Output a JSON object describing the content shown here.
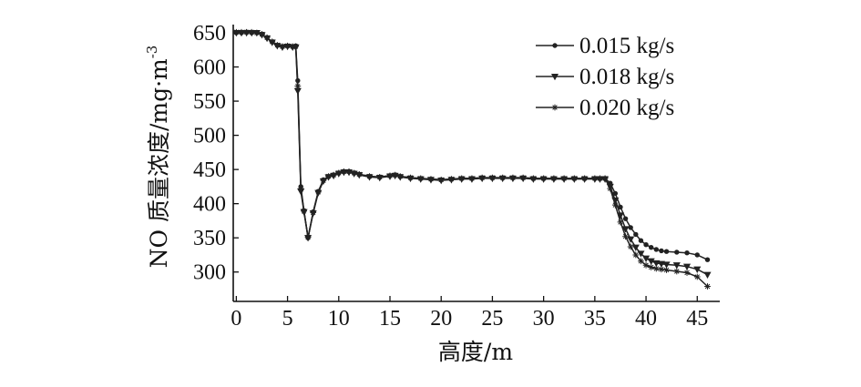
{
  "chart_data": {
    "type": "line",
    "xlabel": "高度/m",
    "ylabel": "NO 质量浓度/mg·m",
    "ylabel_sup": "-3",
    "xlim": [
      -0.3,
      47.2
    ],
    "ylim": [
      257,
      662
    ],
    "xticks": [
      0,
      5,
      10,
      15,
      20,
      25,
      30,
      35,
      40,
      45
    ],
    "yticks": [
      300,
      350,
      400,
      450,
      500,
      550,
      600,
      650
    ],
    "legend_position": "top-right",
    "series": [
      {
        "name": "0.015 kg/s",
        "marker": "circle",
        "x": [
          0,
          0.5,
          1,
          1.5,
          2,
          2.5,
          3,
          3.5,
          4,
          4.5,
          5,
          5.5,
          5.8,
          6,
          6.3,
          6.6,
          7,
          7.5,
          8,
          8.5,
          9,
          9.5,
          10,
          10.5,
          11,
          11.5,
          12,
          13,
          14,
          15,
          15.5,
          16,
          17,
          18,
          19,
          20,
          21,
          22,
          23,
          24,
          25,
          26,
          27,
          28,
          29,
          30,
          31,
          32,
          33,
          34,
          35,
          35.5,
          36,
          36.5,
          37,
          37.5,
          38,
          38.5,
          39,
          39.5,
          40,
          40.5,
          41,
          41.5,
          42,
          43,
          44,
          45,
          46
        ],
        "y": [
          650,
          650,
          651,
          650,
          650,
          648,
          643,
          637,
          632,
          630,
          631,
          630,
          631,
          580,
          425,
          390,
          350,
          388,
          418,
          435,
          440,
          442,
          445,
          447,
          447,
          445,
          443,
          440,
          439,
          441,
          442,
          440,
          438,
          437,
          436,
          435,
          436,
          437,
          437,
          438,
          438,
          438,
          438,
          438,
          437,
          437,
          437,
          437,
          437,
          437,
          437,
          437,
          437,
          430,
          415,
          395,
          378,
          365,
          355,
          346,
          340,
          336,
          333,
          331,
          330,
          329,
          328,
          325,
          318
        ]
      },
      {
        "name": "0.018 kg/s",
        "marker": "triangle",
        "x": [
          0,
          0.5,
          1,
          1.5,
          2,
          2.5,
          3,
          3.5,
          4,
          4.5,
          5,
          5.5,
          5.8,
          6,
          6.3,
          6.6,
          7,
          7.5,
          8,
          8.5,
          9,
          9.5,
          10,
          10.5,
          11,
          11.5,
          12,
          13,
          14,
          15,
          15.5,
          16,
          17,
          18,
          19,
          20,
          21,
          22,
          23,
          24,
          25,
          26,
          27,
          28,
          29,
          30,
          31,
          32,
          33,
          34,
          35,
          35.5,
          36,
          36.5,
          37,
          37.5,
          38,
          38.5,
          39,
          39.5,
          40,
          40.5,
          41,
          41.5,
          42,
          43,
          44,
          45,
          46
        ],
        "y": [
          650,
          650,
          650,
          650,
          650,
          647,
          642,
          636,
          631,
          629,
          630,
          629,
          629,
          565,
          418,
          388,
          350,
          386,
          416,
          433,
          439,
          441,
          444,
          446,
          446,
          444,
          442,
          439,
          438,
          440,
          441,
          439,
          437,
          436,
          435,
          434,
          435,
          436,
          436,
          437,
          437,
          437,
          437,
          437,
          436,
          436,
          436,
          436,
          436,
          436,
          436,
          436,
          436,
          425,
          405,
          383,
          363,
          348,
          336,
          327,
          320,
          316,
          313,
          312,
          311,
          310,
          308,
          304,
          296
        ]
      },
      {
        "name": "0.020 kg/s",
        "marker": "star",
        "x": [
          0,
          0.5,
          1,
          1.5,
          2,
          2.5,
          3,
          3.5,
          4,
          4.5,
          5,
          5.5,
          5.8,
          6,
          6.3,
          6.6,
          7,
          7.5,
          8,
          8.5,
          9,
          9.5,
          10,
          10.5,
          11,
          11.5,
          12,
          13,
          14,
          15,
          15.5,
          16,
          17,
          18,
          19,
          20,
          21,
          22,
          23,
          24,
          25,
          26,
          27,
          28,
          29,
          30,
          31,
          32,
          33,
          34,
          35,
          35.5,
          36,
          36.5,
          37,
          37.5,
          38,
          38.5,
          39,
          39.5,
          40,
          40.5,
          41,
          41.5,
          42,
          43,
          44,
          45,
          46
        ],
        "y": [
          651,
          651,
          651,
          651,
          650,
          648,
          643,
          637,
          632,
          630,
          631,
          630,
          630,
          572,
          422,
          389,
          351,
          387,
          417,
          434,
          440,
          442,
          445,
          447,
          447,
          445,
          443,
          440,
          439,
          441,
          442,
          440,
          438,
          437,
          436,
          435,
          436,
          437,
          437,
          438,
          438,
          438,
          438,
          438,
          437,
          437,
          437,
          437,
          437,
          437,
          437,
          437,
          437,
          422,
          398,
          373,
          352,
          337,
          325,
          316,
          310,
          307,
          305,
          304,
          303,
          301,
          299,
          293,
          279
        ]
      }
    ]
  }
}
